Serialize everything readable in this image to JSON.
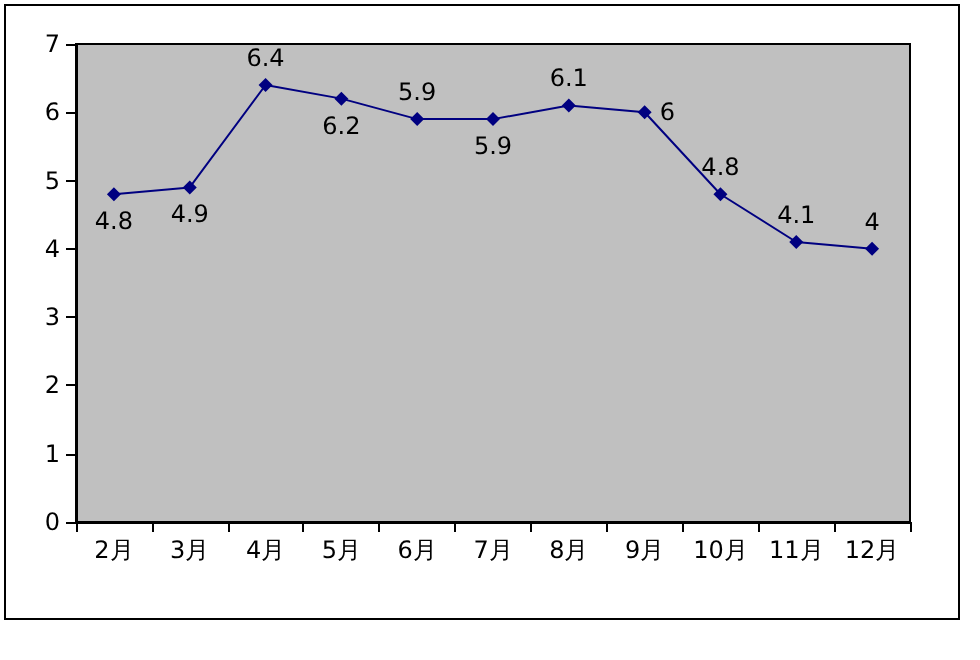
{
  "chart_data": {
    "type": "line",
    "categories": [
      "2月",
      "3月",
      "4月",
      "5月",
      "6月",
      "7月",
      "8月",
      "9月",
      "10月",
      "11月",
      "12月"
    ],
    "series": [
      {
        "color": "#000080",
        "values": [
          4.8,
          4.9,
          6.4,
          6.2,
          5.9,
          5.9,
          6.1,
          6,
          4.8,
          4.1,
          4
        ]
      }
    ],
    "ylim": [
      0,
      7
    ],
    "yticks": [
      0,
      1,
      2,
      3,
      4,
      5,
      6,
      7
    ],
    "grid": false,
    "marker": "diamond",
    "line_style": "solid",
    "data_labels": true
  }
}
